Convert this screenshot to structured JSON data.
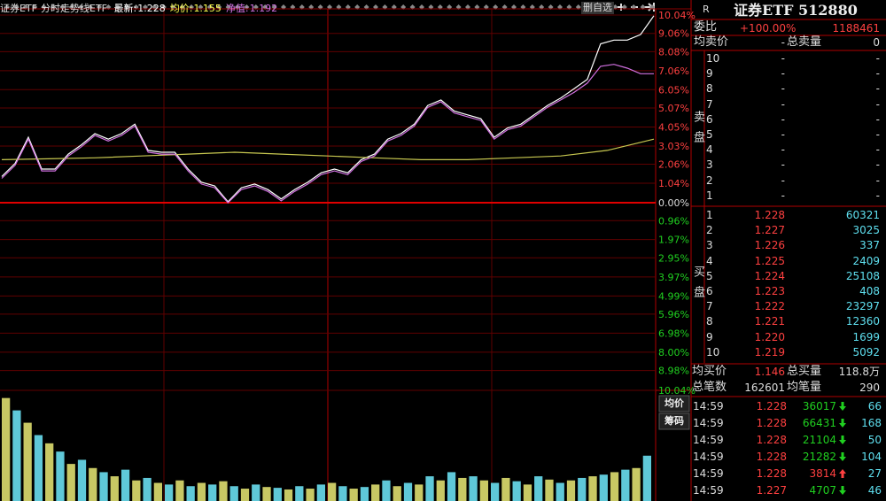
{
  "header": {
    "title": "证券ETF",
    "chart_name": "分时走势线ETF"
  },
  "toolbar": {
    "button": "删自选"
  },
  "chart_data": {
    "type": "line",
    "grid": true,
    "ylim": [
      -10.04,
      10.04
    ],
    "yticks": [
      {
        "value": 10.04,
        "label": "10.04%"
      },
      {
        "value": 9.06,
        "label": "9.06%"
      },
      {
        "value": 8.08,
        "label": "8.08%"
      },
      {
        "value": 7.06,
        "label": "7.06%"
      },
      {
        "value": 6.05,
        "label": "6.05%"
      },
      {
        "value": 5.07,
        "label": "5.07%"
      },
      {
        "value": 4.05,
        "label": "4.05%"
      },
      {
        "value": 3.03,
        "label": "3.03%"
      },
      {
        "value": 2.06,
        "label": "2.06%"
      },
      {
        "value": 1.04,
        "label": "1.04%"
      },
      {
        "value": 0,
        "label": "0.00%"
      },
      {
        "value": -0.96,
        "label": "0.96%"
      },
      {
        "value": -1.97,
        "label": "1.97%"
      },
      {
        "value": -2.95,
        "label": "2.95%"
      },
      {
        "value": -3.97,
        "label": "3.97%"
      },
      {
        "value": -4.99,
        "label": "4.99%"
      },
      {
        "value": -5.96,
        "label": "5.96%"
      },
      {
        "value": -6.98,
        "label": "6.98%"
      },
      {
        "value": -8.0,
        "label": "8.00%"
      },
      {
        "value": -8.98,
        "label": "8.98%"
      },
      {
        "value": -10.04,
        "label": "10.04%"
      }
    ],
    "series": [
      {
        "name": "最新:",
        "value_label": "1.228",
        "color": "#ffffff",
        "values": [
          1.4,
          2.1,
          3.5,
          1.8,
          1.8,
          2.6,
          3.1,
          3.7,
          3.4,
          3.7,
          4.2,
          2.8,
          2.7,
          2.7,
          1.8,
          1.1,
          0.9,
          0.05,
          0.8,
          1.0,
          0.7,
          0.2,
          0.7,
          1.1,
          1.6,
          1.8,
          1.6,
          2.3,
          2.6,
          3.4,
          3.7,
          4.2,
          5.2,
          5.5,
          4.9,
          4.7,
          4.5,
          3.5,
          4.0,
          4.2,
          4.7,
          5.2,
          5.6,
          6.1,
          6.6,
          8.5,
          8.7,
          8.7,
          9.0,
          10.0
        ]
      },
      {
        "name": "均价:",
        "value_label": "1.155",
        "color": "#c8c850",
        "values": [
          2.3,
          2.35,
          2.4,
          2.5,
          2.6,
          2.7,
          2.6,
          2.5,
          2.4,
          2.3,
          2.3,
          2.4,
          2.5,
          2.8,
          3.4
        ]
      },
      {
        "name": "净值:",
        "value_label": "1.192",
        "color": "#d070e0",
        "values": [
          1.3,
          2.0,
          3.4,
          1.7,
          1.7,
          2.5,
          3.0,
          3.6,
          3.3,
          3.6,
          4.1,
          2.7,
          2.6,
          2.6,
          1.7,
          1.0,
          0.8,
          0.0,
          0.7,
          0.9,
          0.6,
          0.1,
          0.6,
          1.0,
          1.5,
          1.7,
          1.5,
          2.2,
          2.5,
          3.3,
          3.6,
          4.1,
          5.1,
          5.4,
          4.8,
          4.6,
          4.4,
          3.4,
          3.9,
          4.1,
          4.6,
          5.1,
          5.5,
          5.9,
          6.4,
          7.3,
          7.4,
          7.2,
          6.9,
          6.9
        ]
      }
    ],
    "volume": {
      "ylim": [
        0,
        130
      ],
      "colors": [
        "#c8c864",
        "#5fc8d8"
      ],
      "values": [
        125,
        110,
        95,
        80,
        70,
        60,
        45,
        50,
        40,
        35,
        30,
        38,
        25,
        28,
        22,
        20,
        25,
        18,
        22,
        20,
        24,
        18,
        15,
        20,
        17,
        16,
        14,
        18,
        15,
        20,
        22,
        18,
        15,
        17,
        20,
        25,
        18,
        22,
        20,
        30,
        25,
        35,
        28,
        30,
        25,
        22,
        28,
        24,
        20,
        30,
        26,
        22,
        25,
        28,
        30,
        32,
        35,
        38,
        40,
        55
      ]
    }
  },
  "quote": {
    "flag": "R",
    "title": "证券ETF 512880",
    "ratio_label": "委比",
    "ratio": "+100.00%",
    "ratio_diff": "1188461",
    "avg_sell_label": "均卖价",
    "avg_sell": "-",
    "total_sell_label": "总卖量",
    "total_sell": "0",
    "sell_side": "卖盘",
    "buy_side": "买盘",
    "sell": [
      {
        "level": "10",
        "price": "-",
        "volume": "-"
      },
      {
        "level": "9",
        "price": "-",
        "volume": "-"
      },
      {
        "level": "8",
        "price": "-",
        "volume": "-"
      },
      {
        "level": "7",
        "price": "-",
        "volume": "-"
      },
      {
        "level": "6",
        "price": "-",
        "volume": "-"
      },
      {
        "level": "5",
        "price": "-",
        "volume": "-"
      },
      {
        "level": "4",
        "price": "-",
        "volume": "-"
      },
      {
        "level": "3",
        "price": "-",
        "volume": "-"
      },
      {
        "level": "2",
        "price": "-",
        "volume": "-"
      },
      {
        "level": "1",
        "price": "-",
        "volume": "-"
      }
    ],
    "buy": [
      {
        "level": "1",
        "price": "1.228",
        "volume": "60321"
      },
      {
        "level": "2",
        "price": "1.227",
        "volume": "3025"
      },
      {
        "level": "3",
        "price": "1.226",
        "volume": "337"
      },
      {
        "level": "4",
        "price": "1.225",
        "volume": "2409"
      },
      {
        "level": "5",
        "price": "1.224",
        "volume": "25108"
      },
      {
        "level": "6",
        "price": "1.223",
        "volume": "408"
      },
      {
        "level": "7",
        "price": "1.222",
        "volume": "23297"
      },
      {
        "level": "8",
        "price": "1.221",
        "volume": "12360"
      },
      {
        "level": "9",
        "price": "1.220",
        "volume": "1699"
      },
      {
        "level": "10",
        "price": "1.219",
        "volume": "5092"
      }
    ],
    "stats": [
      [
        "均买价",
        "1.146",
        "总买量",
        "118.8万"
      ],
      [
        "总笔数",
        "162601",
        "均笔量",
        "290"
      ]
    ]
  },
  "tabs": [
    "均价",
    "筹码"
  ],
  "trades": [
    {
      "time": "14:59",
      "price": "1.228",
      "volume": "36017",
      "dir": "down",
      "count": "66"
    },
    {
      "time": "14:59",
      "price": "1.228",
      "volume": "66431",
      "dir": "down",
      "count": "168"
    },
    {
      "time": "14:59",
      "price": "1.228",
      "volume": "21104",
      "dir": "down",
      "count": "50"
    },
    {
      "time": "14:59",
      "price": "1.228",
      "volume": "21282",
      "dir": "down",
      "count": "104"
    },
    {
      "time": "14:59",
      "price": "1.228",
      "volume": "3814",
      "dir": "up",
      "count": "27"
    },
    {
      "time": "14:59",
      "price": "1.227",
      "volume": "4707",
      "dir": "down",
      "count": "46"
    }
  ]
}
